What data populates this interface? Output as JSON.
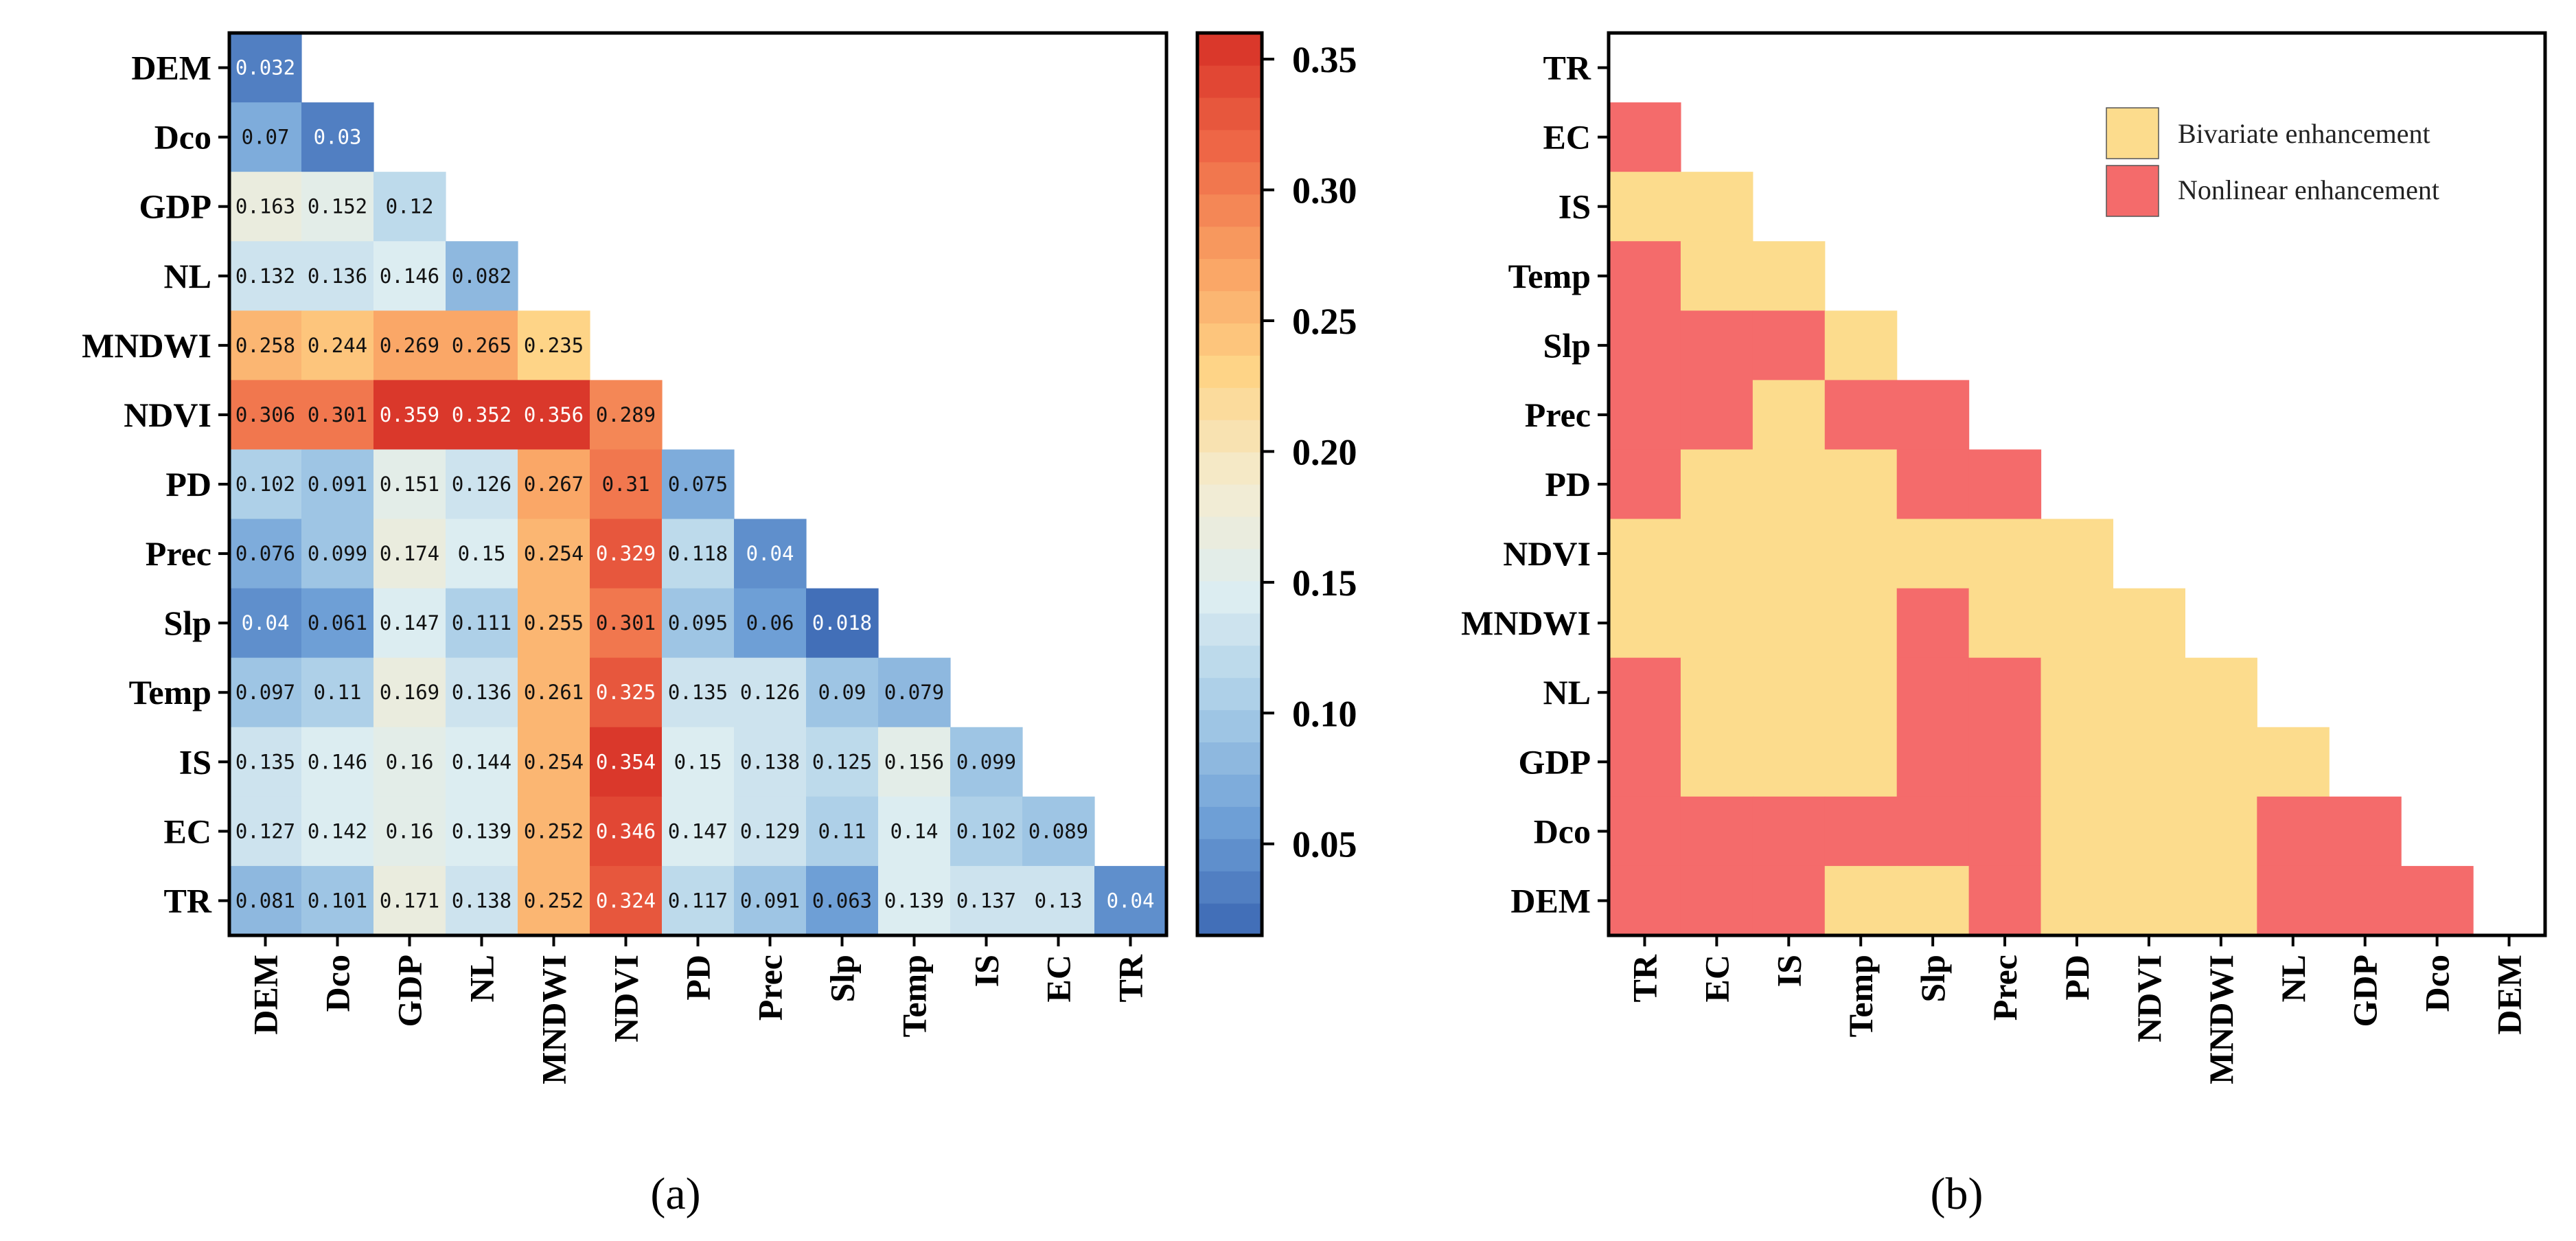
{
  "chart_data": [
    {
      "type": "heatmap",
      "panel": "a",
      "variables": [
        "DEM",
        "Dco",
        "GDP",
        "NL",
        "MNDWI",
        "NDVI",
        "PD",
        "Prec",
        "Slp",
        "Temp",
        "IS",
        "EC",
        "TR"
      ],
      "rows": [
        "DEM",
        "Dco",
        "GDP",
        "NL",
        "MNDWI",
        "NDVI",
        "PD",
        "Prec",
        "Slp",
        "Temp",
        "IS",
        "EC",
        "TR"
      ],
      "columns": [
        "DEM",
        "Dco",
        "GDP",
        "NL",
        "MNDWI",
        "NDVI",
        "PD",
        "Prec",
        "Slp",
        "Temp",
        "IS",
        "EC",
        "TR"
      ],
      "values": [
        [
          0.032
        ],
        [
          0.07,
          0.03
        ],
        [
          0.163,
          0.152,
          0.12
        ],
        [
          0.132,
          0.136,
          0.146,
          0.082
        ],
        [
          0.258,
          0.244,
          0.269,
          0.265,
          0.235
        ],
        [
          0.306,
          0.301,
          0.359,
          0.352,
          0.356,
          0.289
        ],
        [
          0.102,
          0.091,
          0.151,
          0.126,
          0.267,
          0.31,
          0.075
        ],
        [
          0.076,
          0.099,
          0.174,
          0.15,
          0.254,
          0.329,
          0.118,
          0.04
        ],
        [
          0.04,
          0.061,
          0.147,
          0.111,
          0.255,
          0.301,
          0.095,
          0.06,
          0.018
        ],
        [
          0.097,
          0.11,
          0.169,
          0.136,
          0.261,
          0.325,
          0.135,
          0.126,
          0.09,
          0.079
        ],
        [
          0.135,
          0.146,
          0.16,
          0.144,
          0.254,
          0.354,
          0.15,
          0.138,
          0.125,
          0.156,
          0.099
        ],
        [
          0.127,
          0.142,
          0.16,
          0.139,
          0.252,
          0.346,
          0.147,
          0.129,
          0.11,
          0.14,
          0.102,
          0.089
        ],
        [
          0.081,
          0.101,
          0.171,
          0.138,
          0.252,
          0.324,
          0.117,
          0.091,
          0.063,
          0.139,
          0.137,
          0.13,
          0.04
        ]
      ],
      "labels": [
        [
          "0.032"
        ],
        [
          "0.07",
          "0.03"
        ],
        [
          "0.163",
          "0.152",
          "0.12"
        ],
        [
          "0.132",
          "0.136",
          "0.146",
          "0.082"
        ],
        [
          "0.258",
          "0.244",
          "0.269",
          "0.265",
          "0.235"
        ],
        [
          "0.306",
          "0.301",
          "0.359",
          "0.352",
          "0.356",
          "0.289"
        ],
        [
          "0.102",
          "0.091",
          "0.151",
          "0.126",
          "0.267",
          "0.31",
          "0.075"
        ],
        [
          "0.076",
          "0.099",
          "0.174",
          "0.15",
          "0.254",
          "0.329",
          "0.118",
          "0.04"
        ],
        [
          "0.04",
          "0.061",
          "0.147",
          "0.111",
          "0.255",
          "0.301",
          "0.095",
          "0.06",
          "0.018"
        ],
        [
          "0.097",
          "0.11",
          "0.169",
          "0.136",
          "0.261",
          "0.325",
          "0.135",
          "0.126",
          "0.09",
          "0.079"
        ],
        [
          "0.135",
          "0.146",
          "0.16",
          "0.144",
          "0.254",
          "0.354",
          "0.15",
          "0.138",
          "0.125",
          "0.156",
          "0.099"
        ],
        [
          "0.127",
          "0.142",
          "0.16",
          "0.139",
          "0.252",
          "0.346",
          "0.147",
          "0.129",
          "0.11",
          "0.14",
          "0.102",
          "0.089"
        ],
        [
          "0.081",
          "0.101",
          "0.171",
          "0.138",
          "0.252",
          "0.324",
          "0.117",
          "0.091",
          "0.063",
          "0.139",
          "0.137",
          "0.13",
          "0.04"
        ]
      ],
      "colorbar": {
        "range": [
          0.015,
          0.36
        ],
        "ticks": [
          0.05,
          0.1,
          0.15,
          0.2,
          0.25,
          0.3,
          0.35
        ],
        "tick_labels": [
          "0.05",
          "0.10",
          "0.15",
          "0.20",
          "0.25",
          "0.30",
          "0.35"
        ],
        "colormap": [
          "#3b67b3",
          "#6e9fd6",
          "#a6cbe6",
          "#dcedf1",
          "#f4ecd0",
          "#fed487",
          "#f9a062",
          "#ee6646",
          "#d73026"
        ]
      }
    },
    {
      "type": "heatmap",
      "panel": "b",
      "rows": [
        "TR",
        "EC",
        "IS",
        "Temp",
        "Slp",
        "Prec",
        "PD",
        "NDVI",
        "MNDWI",
        "NL",
        "GDP",
        "Dco",
        "DEM"
      ],
      "columns": [
        "TR",
        "EC",
        "IS",
        "Temp",
        "Slp",
        "Prec",
        "PD",
        "NDVI",
        "MNDWI",
        "NL",
        "GDP",
        "Dco",
        "DEM"
      ],
      "categories_code": {
        "B": "Bivariate enhancement",
        "N": "Nonlinear enhancement"
      },
      "values": [
        [],
        [
          "N"
        ],
        [
          "B",
          "B"
        ],
        [
          "N",
          "B",
          "B"
        ],
        [
          "N",
          "N",
          "N",
          "B"
        ],
        [
          "N",
          "N",
          "B",
          "N",
          "N"
        ],
        [
          "N",
          "B",
          "B",
          "B",
          "N",
          "N"
        ],
        [
          "B",
          "B",
          "B",
          "B",
          "B",
          "B",
          "B"
        ],
        [
          "B",
          "B",
          "B",
          "B",
          "N",
          "B",
          "B",
          "B"
        ],
        [
          "N",
          "B",
          "B",
          "B",
          "N",
          "N",
          "B",
          "B",
          "B"
        ],
        [
          "N",
          "B",
          "B",
          "B",
          "N",
          "N",
          "B",
          "B",
          "B",
          "B"
        ],
        [
          "N",
          "N",
          "N",
          "N",
          "N",
          "N",
          "B",
          "B",
          "B",
          "N",
          "N"
        ],
        [
          "N",
          "N",
          "N",
          "B",
          "B",
          "N",
          "B",
          "B",
          "B",
          "N",
          "N",
          "N"
        ]
      ],
      "legend": [
        {
          "label": "Bivariate enhancement",
          "color": "#fcdc8d"
        },
        {
          "label": "Nonlinear enhancement",
          "color": "#f46b6b"
        }
      ],
      "legend_position": "top-right"
    }
  ],
  "panel_labels": {
    "a": "(a)",
    "b": "(b)"
  },
  "colors": {
    "bivariate": "#fcdc8d",
    "nonlinear": "#f46b6b",
    "frame": "#000000"
  }
}
